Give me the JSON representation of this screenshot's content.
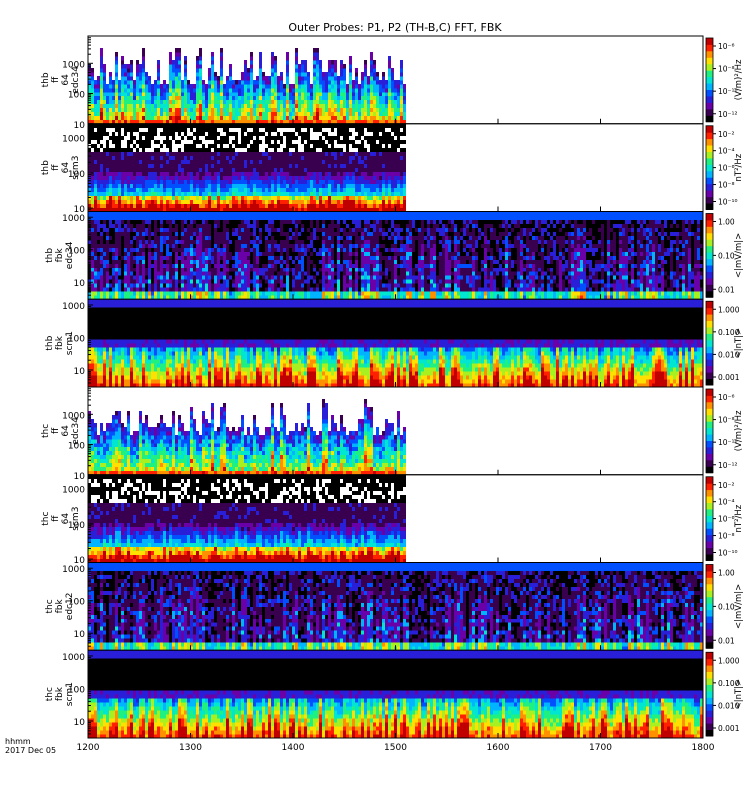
{
  "chart_data": {
    "type": "heatmap",
    "title": "Outer Probes: P1, P2 (TH-B,C) FFT, FBK",
    "x_axis": {
      "range": [
        1200,
        1800
      ],
      "ticks": [
        1200,
        1300,
        1400,
        1500,
        1600,
        1700,
        1800
      ],
      "label_lines": [
        "hhmm",
        "2017 Dec 05"
      ]
    },
    "colorbar_scale": [
      "#000000",
      "#3a0050",
      "#6a00a8",
      "#2a1fd8",
      "#0050ff",
      "#00b4ff",
      "#00e6d0",
      "#20f080",
      "#a8f020",
      "#ffe000",
      "#ff9000",
      "#ff2000",
      "#c00000"
    ],
    "panels": [
      {
        "label_lines": [
          "thb",
          "ff",
          "64",
          "edc34"
        ],
        "y_log_range": [
          10,
          8000
        ],
        "y_ticks": [
          "10",
          "100",
          "1000"
        ],
        "data_end": 1510,
        "profile": "fft_e",
        "colorbar_ticks": [
          "10⁻⁶",
          "10⁻⁸",
          "10⁻¹⁰",
          "10⁻¹²"
        ],
        "colorbar_unit": "(V/m)²/Hz"
      },
      {
        "label_lines": [
          "thb",
          "ff",
          "64",
          "scm3"
        ],
        "y_log_range": [
          8,
          2500
        ],
        "y_ticks": [
          "10",
          "100",
          "1000"
        ],
        "data_end": 1510,
        "profile": "fft_b",
        "colorbar_ticks": [
          "10⁻²",
          "10⁻⁴",
          "10⁻⁶",
          "10⁻⁸",
          "10⁻¹⁰"
        ],
        "colorbar_unit": "nT²/Hz"
      },
      {
        "label_lines": [
          "thb",
          "fbk",
          "edc34"
        ],
        "y_log_range": [
          3,
          1500
        ],
        "y_ticks": [
          "10",
          "100",
          "1000"
        ],
        "data_end": 1800,
        "profile": "fbk_e",
        "colorbar_ticks": [
          "1.00",
          "0.10",
          "0.01"
        ],
        "colorbar_unit": "<|mV/m|>"
      },
      {
        "label_lines": [
          "thb",
          "fbk",
          "scm1"
        ],
        "y_log_range": [
          3,
          1500
        ],
        "y_ticks": [
          "10",
          "100",
          "1000"
        ],
        "data_end": 1800,
        "profile": "fbk_b",
        "colorbar_ticks": [
          "1.000",
          "0.100",
          "0.010",
          "0.001"
        ],
        "colorbar_unit": "<|nT|>"
      },
      {
        "label_lines": [
          "thc",
          "ff",
          "64",
          "edc34"
        ],
        "y_log_range": [
          10,
          8000
        ],
        "y_ticks": [
          "10",
          "100",
          "1000"
        ],
        "data_end": 1510,
        "profile": "fft_e",
        "colorbar_ticks": [
          "10⁻⁶",
          "10⁻⁸",
          "10⁻¹⁰",
          "10⁻¹²"
        ],
        "colorbar_unit": "(V/m)²/Hz"
      },
      {
        "label_lines": [
          "thc",
          "ff",
          "64",
          "scm3"
        ],
        "y_log_range": [
          8,
          2500
        ],
        "y_ticks": [
          "10",
          "100",
          "1000"
        ],
        "data_end": 1510,
        "profile": "fft_b",
        "colorbar_ticks": [
          "10⁻²",
          "10⁻⁴",
          "10⁻⁶",
          "10⁻⁸",
          "10⁻¹⁰"
        ],
        "colorbar_unit": "nT²/Hz"
      },
      {
        "label_lines": [
          "thc",
          "fbk",
          "edc12"
        ],
        "y_log_range": [
          3,
          1500
        ],
        "y_ticks": [
          "10",
          "100",
          "1000"
        ],
        "data_end": 1800,
        "profile": "fbk_e",
        "colorbar_ticks": [
          "1.00",
          "0.10",
          "0.01"
        ],
        "colorbar_unit": "<|mV/m|>"
      },
      {
        "label_lines": [
          "thc",
          "fbk",
          "scm1"
        ],
        "y_log_range": [
          3,
          1500
        ],
        "y_ticks": [
          "10",
          "100",
          "1000"
        ],
        "data_end": 1800,
        "profile": "fbk_b",
        "colorbar_ticks": [
          "1.000",
          "0.100",
          "0.010",
          "0.001"
        ],
        "colorbar_unit": "<|nT|>"
      }
    ]
  }
}
